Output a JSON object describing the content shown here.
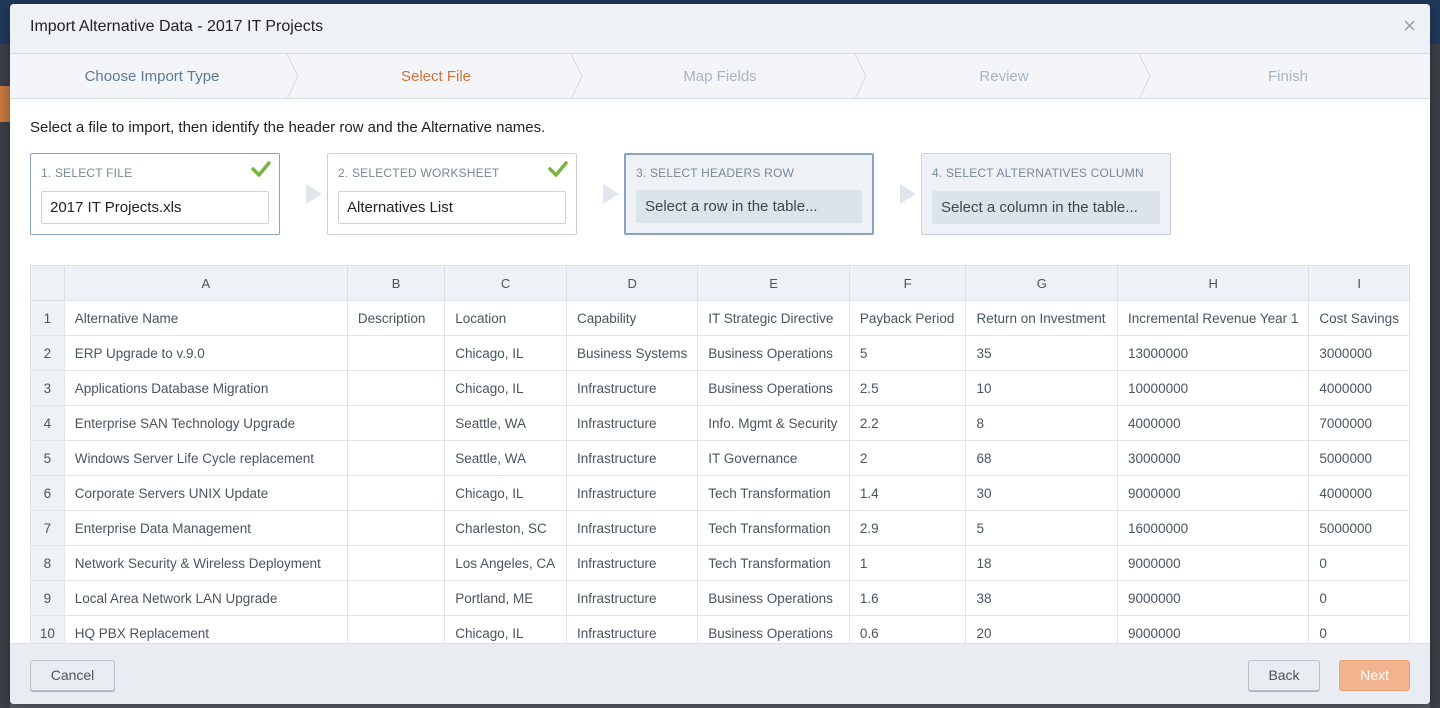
{
  "dialog": {
    "title": "Import Alternative Data - 2017 IT Projects",
    "close_symbol": "×"
  },
  "wizard": {
    "steps": [
      {
        "label": "Choose Import Type",
        "state": "done"
      },
      {
        "label": "Select File",
        "state": "active"
      },
      {
        "label": "Map Fields",
        "state": "upcoming"
      },
      {
        "label": "Review",
        "state": "upcoming"
      },
      {
        "label": "Finish",
        "state": "upcoming"
      }
    ]
  },
  "instructions": "Select a file to import, then identify the header row and the Alternative names.",
  "steps_panel": [
    {
      "label": "1. SELECT FILE",
      "value": "2017 IT Projects.xls",
      "completed": true
    },
    {
      "label": "2. SELECTED WORKSHEET",
      "value": "Alternatives List",
      "completed": true
    },
    {
      "label": "3. SELECT HEADERS ROW",
      "value": "Select a row in the table...",
      "completed": false
    },
    {
      "label": "4. SELECT ALTERNATIVES COLUMN",
      "value": "Select a column in the table...",
      "completed": false
    }
  ],
  "table": {
    "column_letters": [
      "A",
      "B",
      "C",
      "D",
      "E",
      "F",
      "G",
      "H",
      "I"
    ],
    "rows": [
      {
        "n": "1",
        "cells": [
          "Alternative Name",
          "Description",
          "Location",
          "Capability",
          "IT Strategic Directive",
          "Payback Period",
          "Return on Investment",
          "Incremental Revenue Year 1",
          "Cost Savings"
        ]
      },
      {
        "n": "2",
        "cells": [
          "ERP Upgrade to v.9.0",
          "",
          "Chicago, IL",
          "Business Systems",
          "Business Operations",
          "5",
          "35",
          "13000000",
          "3000000"
        ]
      },
      {
        "n": "3",
        "cells": [
          "Applications Database Migration",
          "",
          "Chicago, IL",
          "Infrastructure",
          "Business Operations",
          "2.5",
          "10",
          "10000000",
          "4000000"
        ]
      },
      {
        "n": "4",
        "cells": [
          "Enterprise SAN Technology Upgrade",
          "",
          "Seattle, WA",
          "Infrastructure",
          "Info. Mgmt & Security",
          "2.2",
          "8",
          "4000000",
          "7000000"
        ]
      },
      {
        "n": "5",
        "cells": [
          "Windows Server Life Cycle replacement",
          "",
          "Seattle, WA",
          "Infrastructure",
          "IT Governance",
          "2",
          "68",
          "3000000",
          "5000000"
        ]
      },
      {
        "n": "6",
        "cells": [
          "Corporate Servers UNIX Update",
          "",
          "Chicago, IL",
          "Infrastructure",
          "Tech Transformation",
          "1.4",
          "30",
          "9000000",
          "4000000"
        ]
      },
      {
        "n": "7",
        "cells": [
          "Enterprise Data Management",
          "",
          "Charleston, SC",
          "Infrastructure",
          "Tech Transformation",
          "2.9",
          "5",
          "16000000",
          "5000000"
        ]
      },
      {
        "n": "8",
        "cells": [
          "Network Security & Wireless Deployment",
          "",
          "Los Angeles, CA",
          "Infrastructure",
          "Tech Transformation",
          "1",
          "18",
          "9000000",
          "0"
        ]
      },
      {
        "n": "9",
        "cells": [
          "Local Area Network LAN Upgrade",
          "",
          "Portland, ME",
          "Infrastructure",
          "Business Operations",
          "1.6",
          "38",
          "9000000",
          "0"
        ]
      },
      {
        "n": "10",
        "cells": [
          "HQ PBX Replacement",
          "",
          "Chicago, IL",
          "Infrastructure",
          "Business Operations",
          "0.6",
          "20",
          "9000000",
          "0"
        ]
      }
    ]
  },
  "footer": {
    "cancel_label": "Cancel",
    "back_label": "Back",
    "next_label": "Next"
  },
  "colors": {
    "active_step": "#d0733b",
    "done_step": "#5b7a99",
    "upcoming_step": "#a8b4c2",
    "check": "#7cb342",
    "next_button": "#f2b48f"
  }
}
